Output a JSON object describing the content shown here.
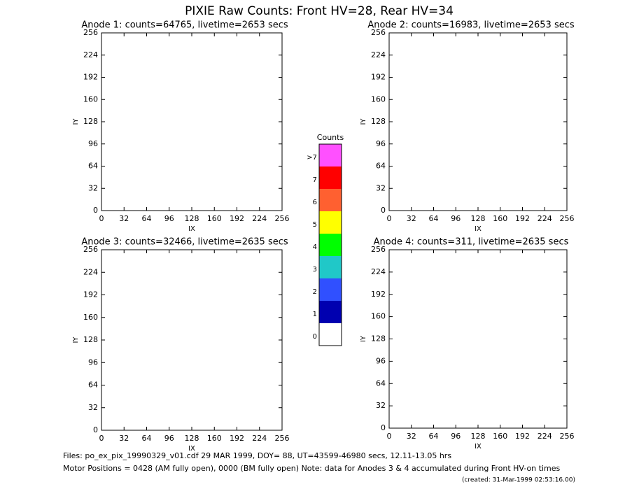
{
  "title": "PIXIE Raw Counts:  Front HV=28, Rear HV=34",
  "chart_data": [
    {
      "type": "heatmap",
      "title": "Anode 1: counts=64765, livetime=2653 secs",
      "xlabel": "IX",
      "ylabel": "IY",
      "xlim": [
        0,
        256
      ],
      "ylim": [
        0,
        256
      ],
      "xticks": [
        0,
        32,
        64,
        96,
        128,
        160,
        192,
        224,
        256
      ],
      "yticks": [
        0,
        32,
        64,
        96,
        128,
        160,
        192,
        224,
        256
      ]
    },
    {
      "type": "heatmap",
      "title": "Anode 2: counts=16983, livetime=2653 secs",
      "xlabel": "IX",
      "ylabel": "IY",
      "xlim": [
        0,
        256
      ],
      "ylim": [
        0,
        256
      ],
      "xticks": [
        0,
        32,
        64,
        96,
        128,
        160,
        192,
        224,
        256
      ],
      "yticks": [
        0,
        32,
        64,
        96,
        128,
        160,
        192,
        224,
        256
      ]
    },
    {
      "type": "heatmap",
      "title": "Anode 3: counts=32466, livetime=2635 secs",
      "xlabel": "IX",
      "ylabel": "IY",
      "xlim": [
        0,
        256
      ],
      "ylim": [
        0,
        256
      ],
      "xticks": [
        0,
        32,
        64,
        96,
        128,
        160,
        192,
        224,
        256
      ],
      "yticks": [
        0,
        32,
        64,
        96,
        128,
        160,
        192,
        224,
        256
      ]
    },
    {
      "type": "heatmap",
      "title": "Anode 4: counts=311, livetime=2635 secs",
      "xlabel": "IX",
      "ylabel": "IY",
      "xlim": [
        0,
        256
      ],
      "ylim": [
        0,
        256
      ],
      "xticks": [
        0,
        32,
        64,
        96,
        128,
        160,
        192,
        224,
        256
      ],
      "yticks": [
        0,
        32,
        64,
        96,
        128,
        160,
        192,
        224,
        256
      ]
    }
  ],
  "colorbar": {
    "title": "Counts",
    "levels": [
      {
        "label": ">7",
        "color": "#ff50ff"
      },
      {
        "label": "7",
        "color": "#ff0000"
      },
      {
        "label": "6",
        "color": "#ff6030"
      },
      {
        "label": "5",
        "color": "#ffff00"
      },
      {
        "label": "4",
        "color": "#00ff00"
      },
      {
        "label": "3",
        "color": "#20c8c8"
      },
      {
        "label": "2",
        "color": "#3050ff"
      },
      {
        "label": "1",
        "color": "#0000b0"
      },
      {
        "label": "0",
        "color": "#ffffff"
      }
    ]
  },
  "footer": [
    "Files: po_ex_pix_19990329_v01.cdf    29 MAR 1999, DOY= 88, UT=43599-46980 secs, 12.11-13.05 hrs",
    "Motor Positions = 0428 (AM fully open), 0000 (BM fully open)    Note: data for Anodes 3 & 4 accumulated during Front HV-on times"
  ],
  "created": "(created: 31-Mar-1999 02:53:16.00)"
}
